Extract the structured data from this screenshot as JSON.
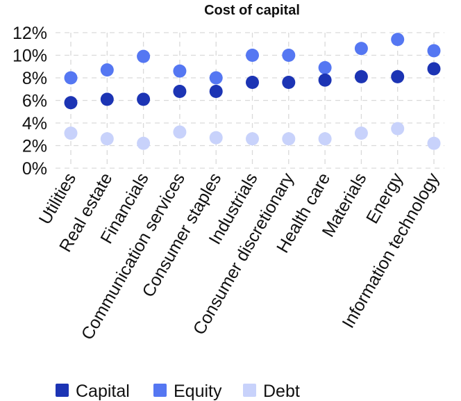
{
  "chart_data": {
    "type": "scatter",
    "title": "Cost of capital",
    "xlabel": "",
    "ylabel": "",
    "ylim": [
      0,
      12
    ],
    "y_ticks": [
      "0%",
      "2%",
      "4%",
      "6%",
      "8%",
      "10%",
      "12%"
    ],
    "y_tick_values": [
      0,
      2,
      4,
      6,
      8,
      10,
      12
    ],
    "grid": true,
    "legend_position": "bottom",
    "categories": [
      "Utilities",
      "Real estate",
      "Financials",
      "Communication services",
      "Consumer staples",
      "Industrials",
      "Consumer discretionary",
      "Health care",
      "Materials",
      "Energy",
      "Information technology"
    ],
    "series": [
      {
        "name": "Capital",
        "color": "#1c34b4",
        "values": [
          5.8,
          6.1,
          6.1,
          6.8,
          6.8,
          7.6,
          7.6,
          7.8,
          8.1,
          8.1,
          8.8
        ]
      },
      {
        "name": "Equity",
        "color": "#5577f2",
        "values": [
          8.0,
          8.7,
          9.9,
          8.6,
          8.0,
          10.0,
          10.0,
          8.9,
          10.6,
          11.4,
          10.4
        ]
      },
      {
        "name": "Debt",
        "color": "#c8d2fb",
        "values": [
          3.1,
          2.6,
          2.2,
          3.2,
          2.7,
          2.6,
          2.6,
          2.6,
          3.1,
          3.5,
          2.2
        ]
      }
    ]
  }
}
